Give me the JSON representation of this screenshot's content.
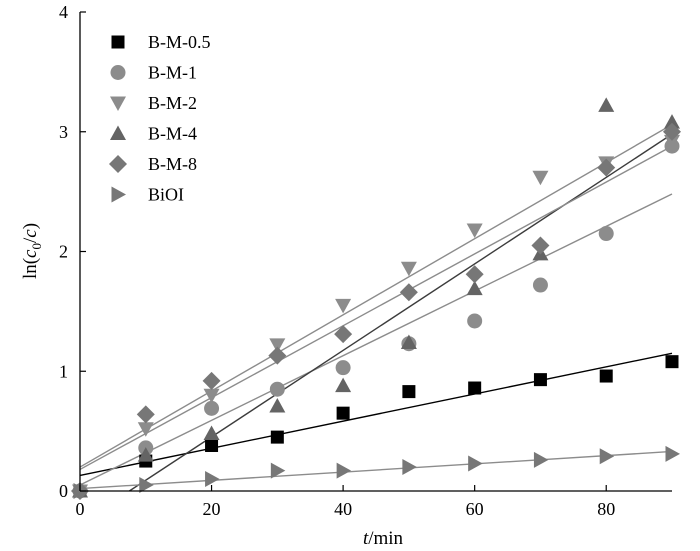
{
  "chart_data": {
    "type": "scatter",
    "xlabel_italic": "t",
    "xlabel_rest": "/min",
    "ylabel_prefix": "ln(",
    "ylabel_c0": "c",
    "ylabel_sub": "0",
    "ylabel_slash": "/",
    "ylabel_c": "c",
    "ylabel_suffix": ")",
    "xlim": [
      0,
      90
    ],
    "ylim": [
      0,
      4
    ],
    "xticks": [
      0,
      20,
      40,
      60,
      80
    ],
    "yticks": [
      0,
      1,
      2,
      3,
      4
    ],
    "grid": false,
    "legend_position": "top-left",
    "series": [
      {
        "name": "B-M-0.5",
        "marker": "square",
        "color": "#000000",
        "line_color": "#000000",
        "x": [
          0,
          10,
          20,
          30,
          40,
          50,
          60,
          70,
          80,
          90
        ],
        "y": [
          0.0,
          0.25,
          0.38,
          0.45,
          0.65,
          0.83,
          0.86,
          0.93,
          0.96,
          1.08
        ],
        "fit": [
          [
            0,
            0.13
          ],
          [
            90,
            1.15
          ]
        ]
      },
      {
        "name": "B-M-1",
        "marker": "circle",
        "color": "#8c8c8c",
        "line_color": "#8c8c8c",
        "x": [
          0,
          10,
          20,
          30,
          40,
          50,
          60,
          70,
          80,
          90
        ],
        "y": [
          0.0,
          0.36,
          0.69,
          0.85,
          1.03,
          1.23,
          1.42,
          1.72,
          2.15,
          2.88
        ],
        "fit": [
          [
            0,
            0.05
          ],
          [
            90,
            2.48
          ]
        ]
      },
      {
        "name": "B-M-2",
        "marker": "triangle-down",
        "color": "#8c8c8c",
        "line_color": "#8c8c8c",
        "x": [
          0,
          10,
          20,
          30,
          40,
          50,
          60,
          70,
          80,
          90
        ],
        "y": [
          0.0,
          0.52,
          0.8,
          1.22,
          1.55,
          1.86,
          2.18,
          2.62,
          2.74,
          2.92
        ],
        "fit": [
          [
            0,
            0.2
          ],
          [
            90,
            3.06
          ]
        ]
      },
      {
        "name": "B-M-4",
        "marker": "triangle-up",
        "color": "#646464",
        "line_color": "#3c3c3c",
        "x": [
          0,
          10,
          20,
          30,
          40,
          50,
          60,
          70,
          80,
          90
        ],
        "y": [
          0.0,
          0.3,
          0.48,
          0.71,
          0.88,
          1.24,
          1.69,
          1.98,
          3.22,
          3.08
        ],
        "fit": [
          [
            7.5,
            0
          ],
          [
            90,
            2.98
          ]
        ]
      },
      {
        "name": "B-M-8",
        "marker": "diamond",
        "color": "#777777",
        "line_color": "#8c8c8c",
        "x": [
          0,
          10,
          20,
          30,
          40,
          50,
          60,
          70,
          80,
          90
        ],
        "y": [
          0.0,
          0.64,
          0.92,
          1.13,
          1.31,
          1.66,
          1.81,
          2.05,
          2.7,
          3.0
        ],
        "fit": [
          [
            0,
            0.18
          ],
          [
            90,
            2.88
          ]
        ]
      },
      {
        "name": "BiOI",
        "marker": "triangle-right",
        "color": "#777777",
        "line_color": "#8c8c8c",
        "x": [
          0,
          10,
          20,
          30,
          40,
          50,
          60,
          70,
          80,
          90
        ],
        "y": [
          0.0,
          0.05,
          0.1,
          0.17,
          0.17,
          0.2,
          0.23,
          0.26,
          0.29,
          0.31
        ],
        "fit": [
          [
            0,
            0.02
          ],
          [
            90,
            0.33
          ]
        ]
      }
    ]
  }
}
